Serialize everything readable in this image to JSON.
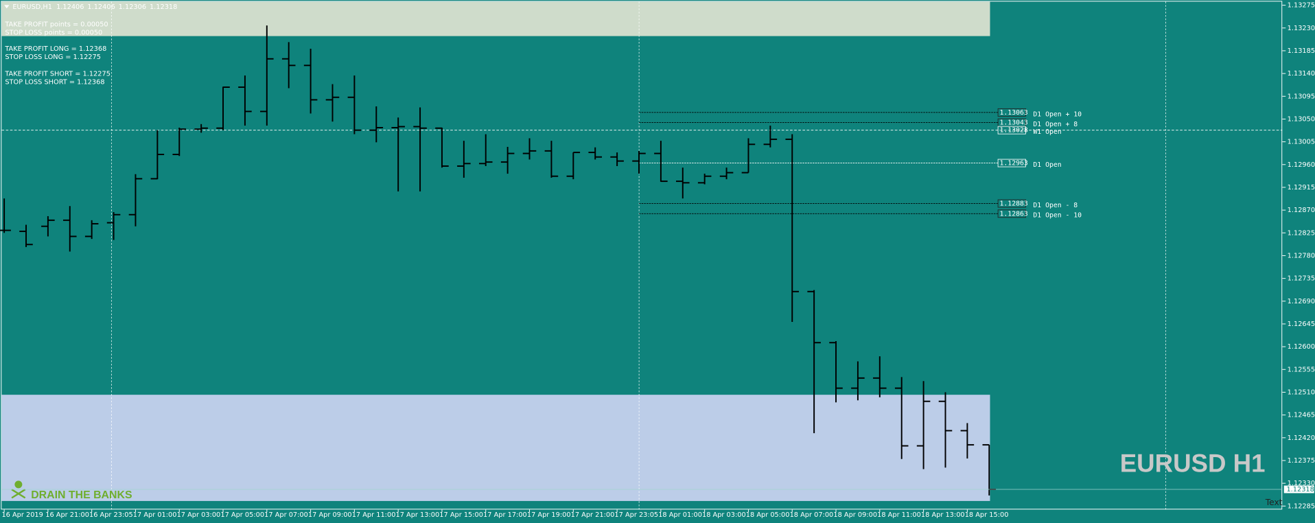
{
  "chart_data": {
    "type": "ohlc",
    "title": "EURUSD,H1",
    "watermark": "EURUSD H1",
    "logo": "DRAIN THE BANKS",
    "corner_text": "Text",
    "annotations": [
      "TAKE PROFIT points = 0.00050",
      "STOP LOSS points =   0.00050",
      "TAKE PROFIT LONG = 1.12368",
      "STOP LOSS LONG =   1.12275",
      "TAKE PROFIT SHORT = 1.12275",
      "STOP LOSS SHORT =   1.12368"
    ],
    "categories": [
      "16 Apr 2019",
      null,
      "16 Apr 21:00",
      null,
      "16 Apr 23:05",
      null,
      "17 Apr 01:00",
      null,
      "17 Apr 03:00",
      null,
      "17 Apr 05:00",
      null,
      "17 Apr 07:00",
      null,
      "17 Apr 09:00",
      null,
      "17 Apr 11:00",
      null,
      "17 Apr 13:00",
      null,
      "17 Apr 15:00",
      null,
      "17 Apr 17:00",
      null,
      "17 Apr 19:00",
      null,
      "17 Apr 21:00",
      null,
      "17 Apr 23:05",
      null,
      "18 Apr 01:00",
      null,
      "18 Apr 03:00",
      null,
      "18 Apr 05:00",
      null,
      "18 Apr 07:00",
      null,
      "18 Apr 09:00",
      null,
      "18 Apr 11:00",
      null,
      "18 Apr 13:00",
      null,
      "18 Apr 15:00",
      null
    ],
    "open": [
      1.1283,
      1.12828,
      1.12838,
      1.1285,
      1.12818,
      1.12845,
      1.12861,
      1.12932,
      1.1298,
      1.1303,
      1.13032,
      1.13113,
      1.13065,
      1.13169,
      1.13156,
      1.13088,
      1.13093,
      1.13028,
      1.13033,
      1.13035,
      1.13032,
      1.12957,
      1.12962,
      1.12965,
      1.12982,
      1.12987,
      1.12937,
      1.12984,
      1.12975,
      1.12967,
      1.12982,
      1.12927,
      1.12924,
      1.12937,
      1.12944,
      1.13,
      1.1301,
      1.12709,
      1.12608,
      1.12518,
      1.12538,
      1.12518,
      1.12404,
      1.12492,
      1.12434,
      1.12406
    ],
    "high": [
      1.12893,
      1.12841,
      1.12858,
      1.12878,
      1.1285,
      1.12866,
      1.12941,
      1.13028,
      1.13033,
      1.1304,
      1.13114,
      1.13136,
      1.13235,
      1.13202,
      1.13189,
      1.13119,
      1.13136,
      1.13075,
      1.13053,
      1.13073,
      1.13033,
      1.13007,
      1.1302,
      1.12995,
      1.13012,
      1.13007,
      1.12984,
      1.12994,
      1.12984,
      1.12987,
      1.13007,
      1.12954,
      1.12942,
      1.12954,
      1.13012,
      1.13037,
      1.1302,
      1.12712,
      1.12611,
      1.12571,
      1.12581,
      1.1254,
      1.12532,
      1.1251,
      1.12449,
      1.12406
    ],
    "low": [
      1.12825,
      1.12797,
      1.12818,
      1.12788,
      1.12813,
      1.12811,
      1.12838,
      1.12931,
      1.12977,
      1.13023,
      1.13028,
      1.13037,
      1.13037,
      1.13111,
      1.13061,
      1.13045,
      1.1302,
      1.13004,
      1.12907,
      1.12907,
      1.12954,
      1.12934,
      1.12957,
      1.12942,
      1.1297,
      1.12934,
      1.12931,
      1.1297,
      1.12957,
      1.12942,
      1.12926,
      1.12893,
      1.12921,
      1.12931,
      1.12944,
      1.12994,
      1.12649,
      1.12429,
      1.1249,
      1.12494,
      1.125,
      1.12378,
      1.12358,
      1.12361,
      1.12379,
      1.12306
    ],
    "close": [
      1.1283,
      1.12802,
      1.1285,
      1.12818,
      1.12843,
      1.12861,
      1.12932,
      1.1298,
      1.1303,
      1.13032,
      1.13113,
      1.13065,
      1.13169,
      1.13156,
      1.13088,
      1.13093,
      1.13028,
      1.13033,
      1.13035,
      1.13032,
      1.12957,
      1.12962,
      1.12965,
      1.12982,
      1.12987,
      1.12937,
      1.12984,
      1.12975,
      1.12967,
      1.12982,
      1.12927,
      1.12924,
      1.12937,
      1.12944,
      1.13,
      1.1301,
      1.12709,
      1.12608,
      1.12518,
      1.12538,
      1.12518,
      1.12404,
      1.12492,
      1.12434,
      1.12406,
      1.12318
    ],
    "color": "#000000",
    "levels": [
      {
        "value": 1.13063,
        "name": "D1 Open + 10",
        "color": "#000000"
      },
      {
        "value": 1.13043,
        "name": "D1 Open + 8",
        "color": "#000000"
      },
      {
        "value": 1.13028,
        "name": "W1 Open",
        "color": "#ffffff"
      },
      {
        "value": 1.12963,
        "name": "D1 Open",
        "color": "#ffffff"
      },
      {
        "value": 1.12883,
        "name": "D1 Open - 8",
        "color": "#000000"
      },
      {
        "value": 1.12863,
        "name": "D1 Open - 10",
        "color": "#000000"
      }
    ],
    "zones": [
      {
        "from": 1.13214,
        "to": 1.13282,
        "color": "#cfdccb"
      },
      {
        "from": 1.12295,
        "to": 1.12505,
        "color": "#bccde8"
      }
    ],
    "ylim": [
      1.12278,
      1.13282
    ],
    "yticks": [
      1.13275,
      {
        "value": 1.1323,
        "label": "1.13230"
      },
      1.13185,
      {
        "value": 1.1314,
        "label": "1.13140"
      },
      1.13095,
      {
        "value": 1.1305,
        "label": "1.13050"
      },
      1.13005,
      {
        "value": 1.1296,
        "label": "1.12960"
      },
      1.12915,
      {
        "value": 1.1287,
        "label": "1.12870"
      },
      1.12825,
      {
        "value": 1.1278,
        "label": "1.12780"
      },
      1.12735,
      {
        "value": 1.1269,
        "label": "1.12690"
      },
      1.12645,
      {
        "value": 1.126,
        "label": "1.12600"
      },
      1.12555,
      {
        "value": 1.1251,
        "label": "1.12510"
      },
      1.12465,
      {
        "value": 1.1242,
        "label": "1.12420"
      },
      1.12375,
      {
        "value": 1.1233,
        "label": "1.12330"
      },
      1.12285
    ]
  }
}
